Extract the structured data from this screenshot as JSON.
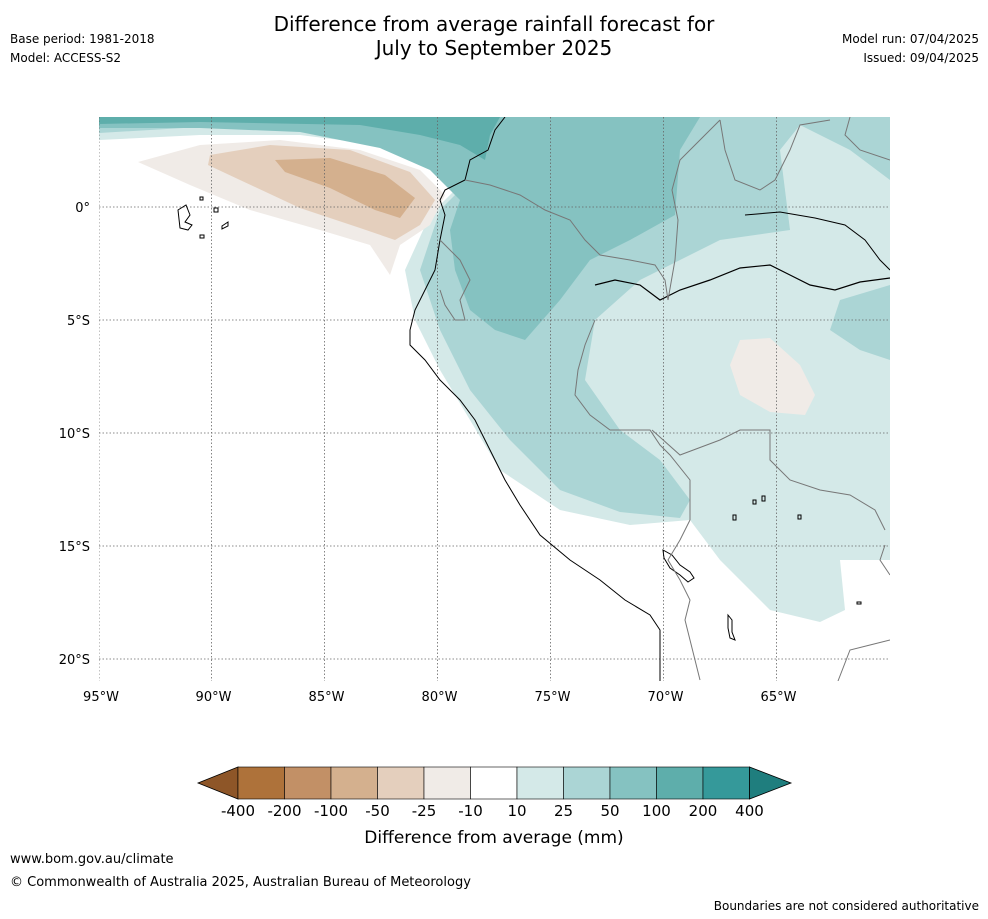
{
  "title": {
    "line1": "Difference from average rainfall forecast for",
    "line2": "July to September 2025"
  },
  "meta_left": {
    "base_period": "Base period: 1981-2018",
    "model": "Model: ACCESS-S2"
  },
  "meta_right": {
    "model_run": "Model run: 07/04/2025",
    "issued": "Issued: 09/04/2025"
  },
  "map": {
    "lat_ticks": [
      "0°",
      "5°S",
      "10°S",
      "15°S",
      "20°S"
    ],
    "lon_ticks": [
      "95°W",
      "90°W",
      "85°W",
      "80°W",
      "75°W",
      "70°W",
      "65°W"
    ],
    "features": [
      "Galapagos Islands",
      "South American west coast",
      "Amazon River",
      "Lake Titicaca"
    ]
  },
  "colorbar": {
    "levels": [
      "-400",
      "-200",
      "-100",
      "-50",
      "-25",
      "-10",
      "10",
      "25",
      "50",
      "100",
      "200",
      "400"
    ],
    "colors": [
      "#ae723a",
      "#c29066",
      "#d4b08e",
      "#e4cfbd",
      "#f0ebe7",
      "#ffffff",
      "#d4e9e8",
      "#abd5d5",
      "#85c2c1",
      "#5eaeab",
      "#35999a"
    ],
    "under_color": "#8e5628",
    "over_color": "#1f7e7e",
    "label": "Difference from average (mm)"
  },
  "footer": {
    "url": "www.bom.gov.au/climate",
    "copyright": "© Commonwealth of Australia 2025, Australian Bureau of Meteorology",
    "disclaimer": "Boundaries are not considered authoritative"
  }
}
